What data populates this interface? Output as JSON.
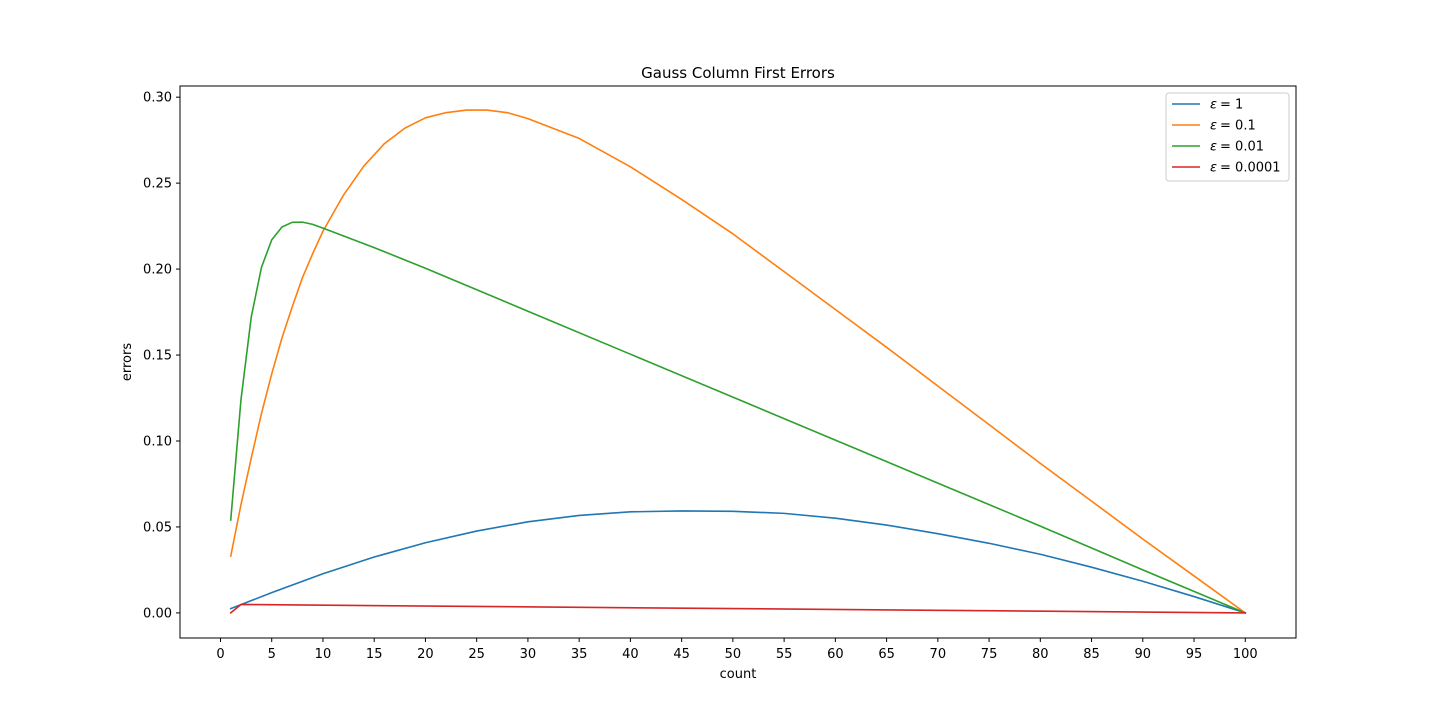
{
  "chart_data": {
    "type": "line",
    "title": "Gauss Column First Errors",
    "xlabel": "count",
    "ylabel": "errors",
    "xlim": [
      -3.95,
      104.95
    ],
    "ylim": [
      -0.0146,
      0.3065
    ],
    "xticks": [
      0,
      5,
      10,
      15,
      20,
      25,
      30,
      35,
      40,
      45,
      50,
      55,
      60,
      65,
      70,
      75,
      80,
      85,
      90,
      95,
      100
    ],
    "yticks": [
      0.0,
      0.05,
      0.1,
      0.15,
      0.2,
      0.25,
      0.3
    ],
    "ytick_labels": [
      "0.00",
      "0.05",
      "0.10",
      "0.15",
      "0.20",
      "0.25",
      "0.30"
    ],
    "grid": false,
    "legend_position": "top-right",
    "series": [
      {
        "name": "ε = 1",
        "legend_symbol": "ε",
        "legend_value": "= 1",
        "color": "#1f77b4",
        "x": [
          1,
          2,
          5,
          10,
          15,
          20,
          25,
          30,
          35,
          40,
          45,
          50,
          55,
          60,
          65,
          70,
          75,
          80,
          85,
          90,
          95,
          100
        ],
        "y": [
          0.0025,
          0.0048,
          0.0118,
          0.0228,
          0.0325,
          0.0408,
          0.0476,
          0.053,
          0.0567,
          0.0588,
          0.0593,
          0.0591,
          0.0579,
          0.0551,
          0.0511,
          0.0461,
          0.0405,
          0.0341,
          0.0266,
          0.0184,
          0.0095,
          0.0
        ]
      },
      {
        "name": "ε = 0.1",
        "legend_symbol": "ε",
        "legend_value": "= 0.1",
        "color": "#ff7f0e",
        "x": [
          1,
          2,
          3,
          4,
          5,
          6,
          7,
          8,
          9,
          10,
          12,
          14,
          16,
          18,
          20,
          22,
          24,
          26,
          28,
          30,
          35,
          40,
          45,
          50,
          55,
          60,
          65,
          70,
          75,
          80,
          85,
          90,
          95,
          100
        ],
        "y": [
          0.033,
          0.063,
          0.09,
          0.116,
          0.139,
          0.16,
          0.178,
          0.195,
          0.209,
          0.222,
          0.243,
          0.26,
          0.273,
          0.282,
          0.288,
          0.291,
          0.2925,
          0.2925,
          0.291,
          0.2875,
          0.276,
          0.2595,
          0.2405,
          0.2205,
          0.1985,
          0.1765,
          0.1545,
          0.132,
          0.1095,
          0.087,
          0.065,
          0.043,
          0.0215,
          0.0
        ]
      },
      {
        "name": "ε = 0.01",
        "legend_symbol": "ε",
        "legend_value": "= 0.01",
        "color": "#2ca02c",
        "x": [
          1,
          2,
          3,
          4,
          5,
          6,
          7,
          8,
          9,
          10,
          15,
          20,
          30,
          40,
          50,
          60,
          70,
          80,
          90,
          100
        ],
        "y": [
          0.054,
          0.124,
          0.172,
          0.201,
          0.217,
          0.2245,
          0.2272,
          0.2273,
          0.226,
          0.2238,
          0.2125,
          0.2005,
          0.1755,
          0.1505,
          0.1255,
          0.1005,
          0.0755,
          0.0505,
          0.025,
          0.0
        ]
      },
      {
        "name": "ε = 0.0001",
        "legend_symbol": "ε",
        "legend_value": "= 0.0001",
        "color": "#d62728",
        "x": [
          1,
          2,
          50,
          100
        ],
        "y": [
          0.0,
          0.0049,
          0.0025,
          0.0
        ]
      }
    ]
  }
}
